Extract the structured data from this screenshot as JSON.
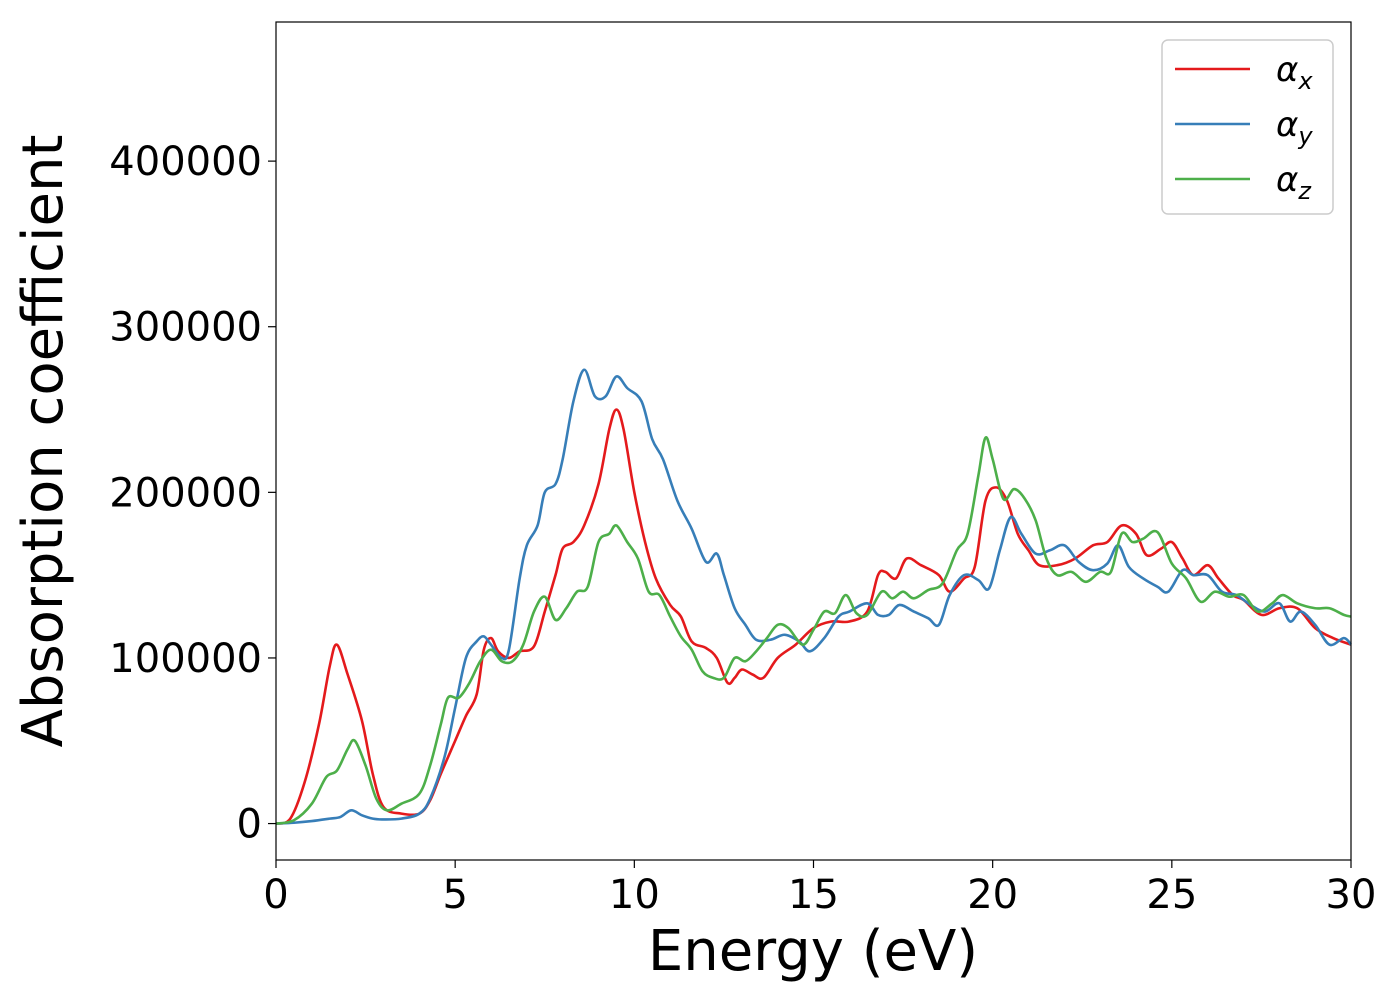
{
  "chart_data": {
    "type": "line",
    "title": "",
    "xlabel": "Energy (eV)",
    "ylabel": "Absorption coefficient",
    "xlim": [
      0,
      30
    ],
    "ylim": [
      -22000,
      484000
    ],
    "xticks": [
      0,
      5,
      10,
      15,
      20,
      25,
      30
    ],
    "yticks": [
      0,
      100000,
      200000,
      300000,
      400000
    ],
    "grid": false,
    "legend_position": "upper right",
    "series": [
      {
        "name": "α_x",
        "color": "#e41a1c",
        "points": [
          [
            0,
            0
          ],
          [
            0.4,
            3000
          ],
          [
            0.8,
            25000
          ],
          [
            1.2,
            60000
          ],
          [
            1.5,
            95000
          ],
          [
            1.7,
            108000
          ],
          [
            2.0,
            90000
          ],
          [
            2.4,
            62000
          ],
          [
            2.7,
            30000
          ],
          [
            3.0,
            10000
          ],
          [
            3.5,
            6000
          ],
          [
            4.0,
            6000
          ],
          [
            4.3,
            14000
          ],
          [
            4.6,
            30000
          ],
          [
            5.0,
            50000
          ],
          [
            5.3,
            65000
          ],
          [
            5.6,
            78000
          ],
          [
            5.8,
            105000
          ],
          [
            6.0,
            112000
          ],
          [
            6.2,
            104000
          ],
          [
            6.5,
            100000
          ],
          [
            6.8,
            104000
          ],
          [
            7.2,
            107000
          ],
          [
            7.5,
            128000
          ],
          [
            7.8,
            150000
          ],
          [
            8.0,
            166000
          ],
          [
            8.3,
            170000
          ],
          [
            8.6,
            180000
          ],
          [
            9.0,
            205000
          ],
          [
            9.3,
            238000
          ],
          [
            9.5,
            250000
          ],
          [
            9.7,
            238000
          ],
          [
            10.0,
            200000
          ],
          [
            10.3,
            170000
          ],
          [
            10.6,
            148000
          ],
          [
            11.0,
            132000
          ],
          [
            11.3,
            125000
          ],
          [
            11.6,
            110000
          ],
          [
            12.0,
            106000
          ],
          [
            12.3,
            100000
          ],
          [
            12.6,
            85000
          ],
          [
            12.8,
            88000
          ],
          [
            13.0,
            93000
          ],
          [
            13.3,
            90000
          ],
          [
            13.6,
            88000
          ],
          [
            14.0,
            100000
          ],
          [
            14.5,
            108000
          ],
          [
            15.0,
            118000
          ],
          [
            15.5,
            122000
          ],
          [
            16.0,
            122000
          ],
          [
            16.5,
            128000
          ],
          [
            16.8,
            150000
          ],
          [
            17.0,
            152000
          ],
          [
            17.3,
            148000
          ],
          [
            17.6,
            160000
          ],
          [
            18.0,
            156000
          ],
          [
            18.5,
            150000
          ],
          [
            18.8,
            140000
          ],
          [
            19.2,
            148000
          ],
          [
            19.5,
            155000
          ],
          [
            19.8,
            195000
          ],
          [
            20.1,
            203000
          ],
          [
            20.4,
            195000
          ],
          [
            20.7,
            175000
          ],
          [
            21.0,
            165000
          ],
          [
            21.3,
            156000
          ],
          [
            21.8,
            156000
          ],
          [
            22.3,
            160000
          ],
          [
            22.8,
            168000
          ],
          [
            23.2,
            170000
          ],
          [
            23.6,
            180000
          ],
          [
            24.0,
            175000
          ],
          [
            24.3,
            162000
          ],
          [
            24.7,
            166000
          ],
          [
            25.0,
            170000
          ],
          [
            25.3,
            160000
          ],
          [
            25.6,
            150000
          ],
          [
            26.0,
            156000
          ],
          [
            26.3,
            148000
          ],
          [
            26.7,
            138000
          ],
          [
            27.0,
            135000
          ],
          [
            27.5,
            126000
          ],
          [
            28.0,
            130000
          ],
          [
            28.5,
            130000
          ],
          [
            29.0,
            118000
          ],
          [
            29.5,
            112000
          ],
          [
            30.0,
            108000
          ]
        ]
      },
      {
        "name": "α_y",
        "color": "#377eb8",
        "points": [
          [
            0,
            0
          ],
          [
            0.5,
            500
          ],
          [
            1.0,
            1500
          ],
          [
            1.5,
            3000
          ],
          [
            1.8,
            4000
          ],
          [
            2.1,
            8000
          ],
          [
            2.4,
            5000
          ],
          [
            2.7,
            3000
          ],
          [
            3.0,
            2500
          ],
          [
            3.5,
            3000
          ],
          [
            4.0,
            6000
          ],
          [
            4.3,
            15000
          ],
          [
            4.7,
            40000
          ],
          [
            5.0,
            70000
          ],
          [
            5.3,
            100000
          ],
          [
            5.6,
            110000
          ],
          [
            5.8,
            113000
          ],
          [
            6.0,
            108000
          ],
          [
            6.3,
            100000
          ],
          [
            6.5,
            105000
          ],
          [
            6.8,
            148000
          ],
          [
            7.0,
            168000
          ],
          [
            7.3,
            180000
          ],
          [
            7.5,
            200000
          ],
          [
            7.8,
            205000
          ],
          [
            8.0,
            220000
          ],
          [
            8.3,
            255000
          ],
          [
            8.6,
            274000
          ],
          [
            8.9,
            258000
          ],
          [
            9.2,
            258000
          ],
          [
            9.5,
            270000
          ],
          [
            9.8,
            263000
          ],
          [
            10.2,
            255000
          ],
          [
            10.5,
            232000
          ],
          [
            10.8,
            220000
          ],
          [
            11.2,
            195000
          ],
          [
            11.6,
            178000
          ],
          [
            12.0,
            158000
          ],
          [
            12.3,
            163000
          ],
          [
            12.5,
            150000
          ],
          [
            12.8,
            130000
          ],
          [
            13.1,
            120000
          ],
          [
            13.4,
            111000
          ],
          [
            13.8,
            111000
          ],
          [
            14.2,
            114000
          ],
          [
            14.6,
            110000
          ],
          [
            14.9,
            104000
          ],
          [
            15.3,
            112000
          ],
          [
            15.7,
            125000
          ],
          [
            16.0,
            128000
          ],
          [
            16.5,
            133000
          ],
          [
            16.8,
            126000
          ],
          [
            17.1,
            126000
          ],
          [
            17.4,
            132000
          ],
          [
            17.8,
            128000
          ],
          [
            18.2,
            124000
          ],
          [
            18.5,
            120000
          ],
          [
            18.8,
            138000
          ],
          [
            19.2,
            150000
          ],
          [
            19.6,
            147000
          ],
          [
            19.9,
            142000
          ],
          [
            20.2,
            165000
          ],
          [
            20.5,
            185000
          ],
          [
            20.8,
            175000
          ],
          [
            21.2,
            163000
          ],
          [
            21.6,
            165000
          ],
          [
            22.0,
            168000
          ],
          [
            22.4,
            158000
          ],
          [
            22.8,
            153000
          ],
          [
            23.2,
            157000
          ],
          [
            23.5,
            168000
          ],
          [
            23.8,
            155000
          ],
          [
            24.2,
            148000
          ],
          [
            24.6,
            143000
          ],
          [
            24.9,
            140000
          ],
          [
            25.3,
            153000
          ],
          [
            25.6,
            150000
          ],
          [
            26.0,
            150000
          ],
          [
            26.4,
            140000
          ],
          [
            26.8,
            138000
          ],
          [
            27.2,
            132000
          ],
          [
            27.6,
            128000
          ],
          [
            28.0,
            133000
          ],
          [
            28.3,
            122000
          ],
          [
            28.6,
            128000
          ],
          [
            29.0,
            120000
          ],
          [
            29.4,
            108000
          ],
          [
            29.8,
            112000
          ],
          [
            30.0,
            108000
          ]
        ]
      },
      {
        "name": "α_z",
        "color": "#4daf4a",
        "points": [
          [
            0,
            0
          ],
          [
            0.5,
            2000
          ],
          [
            1.0,
            12000
          ],
          [
            1.4,
            28000
          ],
          [
            1.7,
            32000
          ],
          [
            2.0,
            45000
          ],
          [
            2.2,
            50000
          ],
          [
            2.5,
            35000
          ],
          [
            2.8,
            15000
          ],
          [
            3.1,
            8000
          ],
          [
            3.5,
            12000
          ],
          [
            4.0,
            18000
          ],
          [
            4.3,
            35000
          ],
          [
            4.6,
            60000
          ],
          [
            4.8,
            76000
          ],
          [
            5.1,
            76000
          ],
          [
            5.4,
            85000
          ],
          [
            5.7,
            98000
          ],
          [
            6.0,
            105000
          ],
          [
            6.3,
            98000
          ],
          [
            6.6,
            98000
          ],
          [
            6.9,
            108000
          ],
          [
            7.2,
            128000
          ],
          [
            7.5,
            137000
          ],
          [
            7.8,
            123000
          ],
          [
            8.1,
            130000
          ],
          [
            8.4,
            140000
          ],
          [
            8.7,
            143000
          ],
          [
            9.0,
            170000
          ],
          [
            9.3,
            175000
          ],
          [
            9.5,
            180000
          ],
          [
            9.8,
            170000
          ],
          [
            10.1,
            160000
          ],
          [
            10.4,
            140000
          ],
          [
            10.7,
            138000
          ],
          [
            11.0,
            125000
          ],
          [
            11.3,
            113000
          ],
          [
            11.6,
            105000
          ],
          [
            11.9,
            92000
          ],
          [
            12.2,
            88000
          ],
          [
            12.5,
            88000
          ],
          [
            12.8,
            100000
          ],
          [
            13.1,
            98000
          ],
          [
            13.4,
            104000
          ],
          [
            13.7,
            112000
          ],
          [
            14.0,
            120000
          ],
          [
            14.3,
            118000
          ],
          [
            14.7,
            108000
          ],
          [
            15.0,
            117000
          ],
          [
            15.3,
            128000
          ],
          [
            15.6,
            127000
          ],
          [
            15.9,
            138000
          ],
          [
            16.2,
            127000
          ],
          [
            16.5,
            126000
          ],
          [
            16.9,
            140000
          ],
          [
            17.2,
            136000
          ],
          [
            17.5,
            140000
          ],
          [
            17.8,
            136000
          ],
          [
            18.2,
            141000
          ],
          [
            18.6,
            145000
          ],
          [
            19.0,
            165000
          ],
          [
            19.3,
            175000
          ],
          [
            19.6,
            210000
          ],
          [
            19.8,
            233000
          ],
          [
            20.0,
            220000
          ],
          [
            20.3,
            196000
          ],
          [
            20.6,
            202000
          ],
          [
            20.9,
            196000
          ],
          [
            21.2,
            183000
          ],
          [
            21.5,
            160000
          ],
          [
            21.8,
            150000
          ],
          [
            22.2,
            152000
          ],
          [
            22.6,
            146000
          ],
          [
            23.0,
            152000
          ],
          [
            23.3,
            152000
          ],
          [
            23.6,
            175000
          ],
          [
            23.9,
            170000
          ],
          [
            24.2,
            172000
          ],
          [
            24.6,
            176000
          ],
          [
            25.0,
            157000
          ],
          [
            25.4,
            148000
          ],
          [
            25.8,
            134000
          ],
          [
            26.2,
            140000
          ],
          [
            26.6,
            137000
          ],
          [
            27.0,
            138000
          ],
          [
            27.4,
            128000
          ],
          [
            27.8,
            133000
          ],
          [
            28.1,
            138000
          ],
          [
            28.5,
            133000
          ],
          [
            29.0,
            130000
          ],
          [
            29.4,
            130000
          ],
          [
            29.8,
            126000
          ],
          [
            30.0,
            125000
          ]
        ]
      }
    ]
  }
}
